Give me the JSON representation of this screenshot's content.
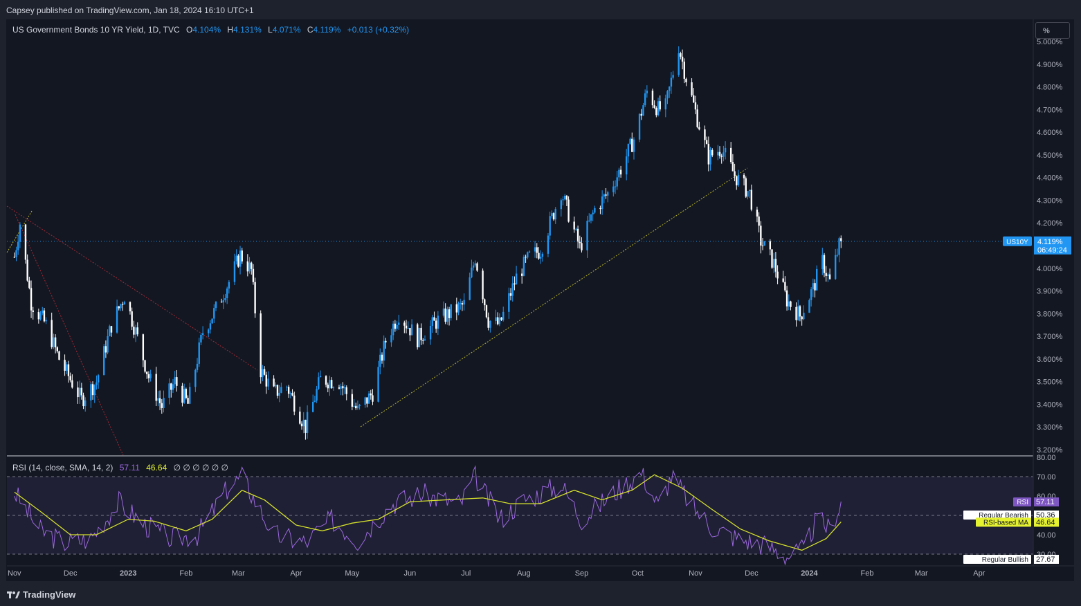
{
  "header": {
    "published_text": "Capsey published on TradingView.com, Jan 18, 2024 16:10 UTC+1"
  },
  "legend": {
    "symbol": "US Government Bonds 10 YR Yield, 1D, TVC",
    "o_label": "O",
    "o_value": "4.104%",
    "h_label": "H",
    "h_value": "4.131%",
    "l_label": "L",
    "l_value": "4.071%",
    "c_label": "C",
    "c_value": "4.119%",
    "change": "+0.013 (+0.32%)"
  },
  "scale_button": {
    "label": "%"
  },
  "price_tag": {
    "ticker": "US10Y",
    "price": "4.119%",
    "countdown": "06:49:24"
  },
  "rsi_legend": {
    "title": "RSI (14, close, SMA, 14, 2)",
    "rsi_value": "57.11",
    "ma_value": "46.64",
    "empty_values": "∅ ∅ ∅ ∅ ∅ ∅"
  },
  "rsi_tags": [
    {
      "name": "RSI",
      "value": "57.11",
      "bg": "#7e57c2",
      "fg": "#ffffff"
    },
    {
      "name": "Regular Bearish",
      "value": "50.36",
      "bg": "#ffffff",
      "fg": "#131722"
    },
    {
      "name": "RSI-based MA",
      "value": "46.64",
      "bg": "#e5f230",
      "fg": "#131722"
    },
    {
      "name": "Regular Bullish",
      "value": "27.67",
      "bg": "#ffffff",
      "fg": "#131722"
    }
  ],
  "footer": {
    "brand": "TradingView"
  },
  "colors": {
    "up": "#2196f3",
    "down": "#ffffff",
    "rsi_line": "#9c6ade",
    "rsi_ma": "#d4e02b",
    "trendline": "#b8b52a",
    "red_line": "#a32a35",
    "price_line": "#2196f3"
  },
  "chart_data": [
    {
      "type": "candlestick",
      "title": "US Government Bonds 10 YR Yield, 1D, TVC",
      "y_unit": "%",
      "ylim": [
        3.2,
        5.0
      ],
      "y_ticks": [
        "5.000%",
        "4.900%",
        "4.800%",
        "4.700%",
        "4.600%",
        "4.500%",
        "4.400%",
        "4.300%",
        "4.200%",
        "4.100%",
        "4.000%",
        "3.900%",
        "3.800%",
        "3.700%",
        "3.600%",
        "3.500%",
        "3.400%",
        "3.300%",
        "3.200%"
      ],
      "x_ticks": [
        "Nov",
        "Dec",
        "2023",
        "Feb",
        "Mar",
        "Apr",
        "May",
        "Jun",
        "Jul",
        "Aug",
        "Sep",
        "Oct",
        "Nov",
        "Dec",
        "2024",
        "Feb",
        "Mar",
        "Apr"
      ],
      "last_close": 4.119,
      "approx_close_path": [
        {
          "date": "2022-11-01",
          "close": 4.05
        },
        {
          "date": "2022-11-04",
          "close": 4.2
        },
        {
          "date": "2022-11-10",
          "close": 3.85
        },
        {
          "date": "2022-11-18",
          "close": 3.75
        },
        {
          "date": "2022-11-25",
          "close": 3.6
        },
        {
          "date": "2022-12-07",
          "close": 3.42
        },
        {
          "date": "2022-12-15",
          "close": 3.5
        },
        {
          "date": "2022-12-23",
          "close": 3.75
        },
        {
          "date": "2022-12-30",
          "close": 3.88
        },
        {
          "date": "2023-01-05",
          "close": 3.72
        },
        {
          "date": "2023-01-12",
          "close": 3.52
        },
        {
          "date": "2023-01-19",
          "close": 3.39
        },
        {
          "date": "2023-01-26",
          "close": 3.5
        },
        {
          "date": "2023-02-02",
          "close": 3.4
        },
        {
          "date": "2023-02-10",
          "close": 3.72
        },
        {
          "date": "2023-02-17",
          "close": 3.82
        },
        {
          "date": "2023-02-24",
          "close": 3.94
        },
        {
          "date": "2023-03-02",
          "close": 4.06
        },
        {
          "date": "2023-03-08",
          "close": 3.99
        },
        {
          "date": "2023-03-13",
          "close": 3.55
        },
        {
          "date": "2023-03-20",
          "close": 3.45
        },
        {
          "date": "2023-03-27",
          "close": 3.48
        },
        {
          "date": "2023-04-06",
          "close": 3.3
        },
        {
          "date": "2023-04-14",
          "close": 3.51
        },
        {
          "date": "2023-04-24",
          "close": 3.5
        },
        {
          "date": "2023-05-04",
          "close": 3.37
        },
        {
          "date": "2023-05-12",
          "close": 3.45
        },
        {
          "date": "2023-05-19",
          "close": 3.68
        },
        {
          "date": "2023-05-26",
          "close": 3.8
        },
        {
          "date": "2023-06-05",
          "close": 3.69
        },
        {
          "date": "2023-06-16",
          "close": 3.77
        },
        {
          "date": "2023-06-30",
          "close": 3.84
        },
        {
          "date": "2023-07-06",
          "close": 4.05
        },
        {
          "date": "2023-07-13",
          "close": 3.77
        },
        {
          "date": "2023-07-19",
          "close": 3.75
        },
        {
          "date": "2023-07-28",
          "close": 3.96
        },
        {
          "date": "2023-08-04",
          "close": 4.05
        },
        {
          "date": "2023-08-10",
          "close": 4.08
        },
        {
          "date": "2023-08-21",
          "close": 4.34
        },
        {
          "date": "2023-08-31",
          "close": 4.09
        },
        {
          "date": "2023-09-08",
          "close": 4.26
        },
        {
          "date": "2023-09-15",
          "close": 4.33
        },
        {
          "date": "2023-09-22",
          "close": 4.44
        },
        {
          "date": "2023-09-29",
          "close": 4.57
        },
        {
          "date": "2023-10-06",
          "close": 4.78
        },
        {
          "date": "2023-10-12",
          "close": 4.7
        },
        {
          "date": "2023-10-16",
          "close": 4.71
        },
        {
          "date": "2023-10-23",
          "close": 4.98
        },
        {
          "date": "2023-10-27",
          "close": 4.84
        },
        {
          "date": "2023-11-02",
          "close": 4.66
        },
        {
          "date": "2023-11-08",
          "close": 4.49
        },
        {
          "date": "2023-11-15",
          "close": 4.53
        },
        {
          "date": "2023-11-22",
          "close": 4.41
        },
        {
          "date": "2023-11-30",
          "close": 4.33
        },
        {
          "date": "2023-12-06",
          "close": 4.12
        },
        {
          "date": "2023-12-13",
          "close": 4.02
        },
        {
          "date": "2023-12-20",
          "close": 3.86
        },
        {
          "date": "2023-12-27",
          "close": 3.79
        },
        {
          "date": "2024-01-03",
          "close": 3.91
        },
        {
          "date": "2024-01-08",
          "close": 4.03
        },
        {
          "date": "2024-01-12",
          "close": 3.94
        },
        {
          "date": "2024-01-17",
          "close": 4.1
        },
        {
          "date": "2024-01-18",
          "close": 4.119
        }
      ]
    },
    {
      "type": "line",
      "title": "RSI (14, close, SMA, 14, 2)",
      "ylim": [
        30,
        80
      ],
      "y_ticks": [
        "80.00",
        "70.00",
        "60.00",
        "50.00",
        "40.00",
        "30.00"
      ],
      "bands": {
        "upper": 70,
        "middle": 50,
        "lower": 30
      },
      "series": [
        {
          "name": "RSI",
          "last": 57.11,
          "approx_path": [
            {
              "date": "2022-11-01",
              "value": 62
            },
            {
              "date": "2022-11-15",
              "value": 42
            },
            {
              "date": "2022-11-28",
              "value": 36
            },
            {
              "date": "2022-12-12",
              "value": 38
            },
            {
              "date": "2022-12-27",
              "value": 57
            },
            {
              "date": "2023-01-10",
              "value": 45
            },
            {
              "date": "2023-01-24",
              "value": 38
            },
            {
              "date": "2023-02-07",
              "value": 40
            },
            {
              "date": "2023-02-24",
              "value": 65
            },
            {
              "date": "2023-03-03",
              "value": 70
            },
            {
              "date": "2023-03-20",
              "value": 40
            },
            {
              "date": "2023-04-06",
              "value": 36
            },
            {
              "date": "2023-04-20",
              "value": 48
            },
            {
              "date": "2023-05-04",
              "value": 37
            },
            {
              "date": "2023-05-22",
              "value": 56
            },
            {
              "date": "2023-06-07",
              "value": 61
            },
            {
              "date": "2023-06-28",
              "value": 56
            },
            {
              "date": "2023-07-06",
              "value": 70
            },
            {
              "date": "2023-07-19",
              "value": 48
            },
            {
              "date": "2023-08-01",
              "value": 58
            },
            {
              "date": "2023-08-21",
              "value": 66
            },
            {
              "date": "2023-09-01",
              "value": 48
            },
            {
              "date": "2023-09-20",
              "value": 63
            },
            {
              "date": "2023-10-03",
              "value": 72
            },
            {
              "date": "2023-10-12",
              "value": 55
            },
            {
              "date": "2023-10-19",
              "value": 70
            },
            {
              "date": "2023-11-01",
              "value": 53
            },
            {
              "date": "2023-11-10",
              "value": 44
            },
            {
              "date": "2023-11-24",
              "value": 38
            },
            {
              "date": "2023-12-08",
              "value": 35
            },
            {
              "date": "2023-12-20",
              "value": 29
            },
            {
              "date": "2023-12-29",
              "value": 32
            },
            {
              "date": "2024-01-05",
              "value": 48
            },
            {
              "date": "2024-01-12",
              "value": 43
            },
            {
              "date": "2024-01-18",
              "value": 57.11
            }
          ]
        },
        {
          "name": "RSI-based MA",
          "last": 46.64,
          "approx_path": [
            {
              "date": "2022-11-01",
              "value": 62
            },
            {
              "date": "2022-11-15",
              "value": 52
            },
            {
              "date": "2022-12-01",
              "value": 40
            },
            {
              "date": "2022-12-15",
              "value": 40
            },
            {
              "date": "2023-01-01",
              "value": 48
            },
            {
              "date": "2023-01-15",
              "value": 47
            },
            {
              "date": "2023-02-01",
              "value": 42
            },
            {
              "date": "2023-02-15",
              "value": 48
            },
            {
              "date": "2023-03-03",
              "value": 63
            },
            {
              "date": "2023-03-15",
              "value": 58
            },
            {
              "date": "2023-04-01",
              "value": 45
            },
            {
              "date": "2023-04-15",
              "value": 42
            },
            {
              "date": "2023-05-01",
              "value": 46
            },
            {
              "date": "2023-05-15",
              "value": 48
            },
            {
              "date": "2023-06-01",
              "value": 57
            },
            {
              "date": "2023-06-20",
              "value": 58
            },
            {
              "date": "2023-07-10",
              "value": 59
            },
            {
              "date": "2023-07-25",
              "value": 56
            },
            {
              "date": "2023-08-10",
              "value": 56
            },
            {
              "date": "2023-08-28",
              "value": 63
            },
            {
              "date": "2023-09-12",
              "value": 58
            },
            {
              "date": "2023-09-28",
              "value": 63
            },
            {
              "date": "2023-10-10",
              "value": 71
            },
            {
              "date": "2023-10-25",
              "value": 64
            },
            {
              "date": "2023-11-10",
              "value": 53
            },
            {
              "date": "2023-11-25",
              "value": 43
            },
            {
              "date": "2023-12-10",
              "value": 37
            },
            {
              "date": "2023-12-28",
              "value": 32
            },
            {
              "date": "2024-01-10",
              "value": 38
            },
            {
              "date": "2024-01-18",
              "value": 46.64
            }
          ]
        }
      ]
    }
  ]
}
